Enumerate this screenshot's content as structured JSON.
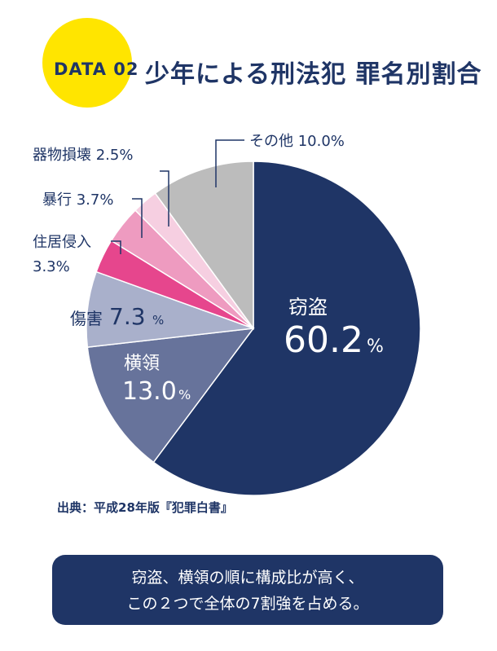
{
  "header": {
    "badge": "DATA 02",
    "title": "少年による刑法犯 罪名別割合"
  },
  "chart_data": {
    "type": "pie",
    "title": "少年による刑法犯 罪名別割合",
    "start": "12 o'clock",
    "direction": "clockwise",
    "slices": [
      {
        "label": "窃盗",
        "value": 60.2,
        "color": "#1f3566"
      },
      {
        "label": "横領",
        "value": 13.0,
        "color": "#67739b"
      },
      {
        "label": "傷害",
        "value": 7.3,
        "color": "#a9b0cb"
      },
      {
        "label": "住居侵入",
        "value": 3.3,
        "color": "#e6468d"
      },
      {
        "label": "暴行",
        "value": 3.7,
        "color": "#ee9bc0"
      },
      {
        "label": "器物損壊",
        "value": 2.5,
        "color": "#f6cfe1"
      },
      {
        "label": "その他",
        "value": 10.0,
        "color": "#bcbcbc"
      }
    ],
    "labels": {
      "theft_name": "窃盗",
      "theft_value": "60.2",
      "embezzle_name": "横領",
      "embezzle_value": "13.0",
      "injury_name": "傷害",
      "injury_value": "7.3",
      "trespass_name": "住居侵入",
      "trespass_value": "3.3%",
      "assault": "暴行 3.7%",
      "damage": "器物損壊 2.5%",
      "other": "その他 10.0%",
      "percent": "%"
    }
  },
  "source": "出典：平成28年版『犯罪白書』",
  "note": {
    "line1": "窃盗、横領の順に構成比が高く、",
    "line2": "この２つで全体の7割強を占める。"
  }
}
